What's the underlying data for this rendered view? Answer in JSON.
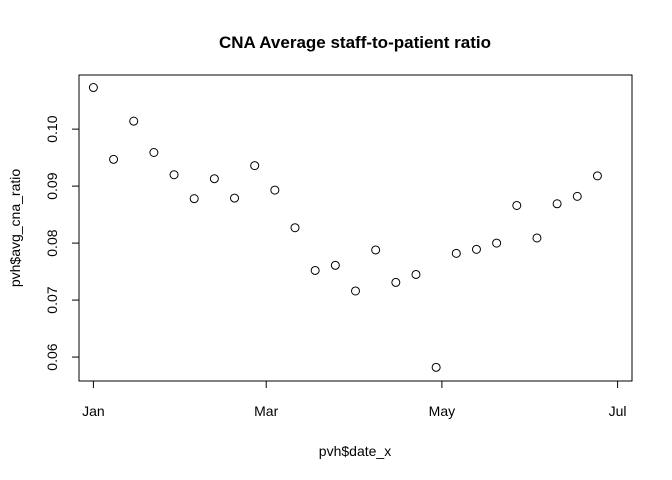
{
  "chart_data": {
    "type": "scatter",
    "title": "CNA Average staff-to-patient ratio",
    "xlabel": "pvh$date_x",
    "ylabel": "pvh$avg_cna_ratio",
    "x_ticks": [
      "Jan",
      "Mar",
      "May",
      "Jul"
    ],
    "x_tick_dates": [
      "2020-01-01",
      "2020-03-01",
      "2020-05-01",
      "2020-07-01"
    ],
    "y_ticks": [
      "0.06",
      "0.07",
      "0.08",
      "0.09",
      "0.10"
    ],
    "y_tick_values": [
      0.06,
      0.07,
      0.08,
      0.09,
      0.1
    ],
    "xlim": [
      "2019-12-27",
      "2020-07-06"
    ],
    "ylim": [
      0.0558,
      0.1095
    ],
    "grid": false,
    "legend": "none",
    "marker": "open-circle",
    "points": [
      {
        "x": "2020-01-01",
        "y": 0.1073
      },
      {
        "x": "2020-01-08",
        "y": 0.0947
      },
      {
        "x": "2020-01-15",
        "y": 0.1014
      },
      {
        "x": "2020-01-22",
        "y": 0.0959
      },
      {
        "x": "2020-01-29",
        "y": 0.092
      },
      {
        "x": "2020-02-05",
        "y": 0.0878
      },
      {
        "x": "2020-02-12",
        "y": 0.0913
      },
      {
        "x": "2020-02-19",
        "y": 0.0879
      },
      {
        "x": "2020-02-26",
        "y": 0.0936
      },
      {
        "x": "2020-03-04",
        "y": 0.0893
      },
      {
        "x": "2020-03-11",
        "y": 0.0827
      },
      {
        "x": "2020-03-18",
        "y": 0.0752
      },
      {
        "x": "2020-03-25",
        "y": 0.0761
      },
      {
        "x": "2020-04-01",
        "y": 0.0716
      },
      {
        "x": "2020-04-08",
        "y": 0.0788
      },
      {
        "x": "2020-04-15",
        "y": 0.0731
      },
      {
        "x": "2020-04-22",
        "y": 0.0745
      },
      {
        "x": "2020-04-29",
        "y": 0.0582
      },
      {
        "x": "2020-05-06",
        "y": 0.0782
      },
      {
        "x": "2020-05-13",
        "y": 0.0789
      },
      {
        "x": "2020-05-20",
        "y": 0.08
      },
      {
        "x": "2020-05-27",
        "y": 0.0866
      },
      {
        "x": "2020-06-03",
        "y": 0.0809
      },
      {
        "x": "2020-06-10",
        "y": 0.0869
      },
      {
        "x": "2020-06-17",
        "y": 0.0882
      },
      {
        "x": "2020-06-24",
        "y": 0.0918
      }
    ]
  }
}
